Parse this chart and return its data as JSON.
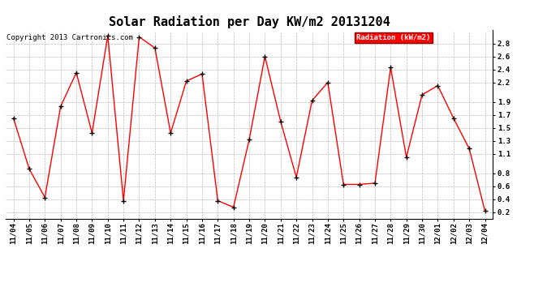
{
  "title": "Solar Radiation per Day KW/m2 20131204",
  "copyright_text": "Copyright 2013 Cartronics.com",
  "legend_label": "Radiation (kW/m2)",
  "dates": [
    "11/04",
    "11/05",
    "11/06",
    "11/07",
    "11/08",
    "11/09",
    "11/10",
    "11/11",
    "11/12",
    "11/13",
    "11/14",
    "11/15",
    "11/16",
    "11/17",
    "11/18",
    "11/19",
    "11/20",
    "11/21",
    "11/22",
    "11/23",
    "11/24",
    "11/25",
    "11/26",
    "11/27",
    "11/28",
    "11/29",
    "11/30",
    "12/01",
    "12/02",
    "12/03",
    "12/04"
  ],
  "values": [
    1.65,
    0.87,
    0.43,
    1.83,
    2.35,
    1.42,
    2.92,
    0.38,
    2.9,
    2.73,
    1.42,
    2.22,
    2.33,
    0.38,
    0.28,
    1.32,
    2.6,
    1.6,
    0.74,
    1.92,
    2.2,
    0.63,
    0.63,
    0.65,
    2.43,
    1.05,
    2.01,
    2.15,
    1.65,
    1.18,
    0.22
  ],
  "ylim": [
    0.1,
    3.0
  ],
  "yticks": [
    0.2,
    0.4,
    0.6,
    0.8,
    1.1,
    1.3,
    1.5,
    1.7,
    1.9,
    2.2,
    2.4,
    2.6,
    2.8
  ],
  "line_color": "red",
  "marker_color": "black",
  "legend_bg": "red",
  "legend_text_color": "white",
  "grid_color": "#bbbbbb",
  "bg_color": "white",
  "title_fontsize": 11,
  "tick_fontsize": 6.5,
  "copyright_fontsize": 6.5
}
